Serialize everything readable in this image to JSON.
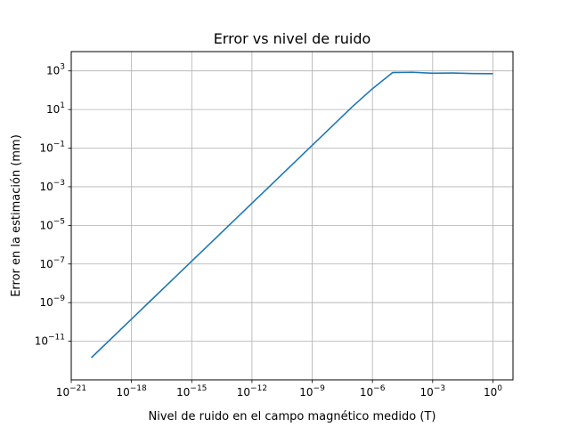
{
  "chart_data": {
    "type": "line",
    "title": "Error vs nivel de ruido",
    "xlabel": "Nivel de ruido en el campo magnético medido (T)",
    "ylabel": "Error en la estimación (mm)",
    "xscale": "log",
    "yscale": "log",
    "xlim": [
      1e-21,
      10
    ],
    "ylim": [
      1e-13,
      10000.0
    ],
    "grid": true,
    "x_ticks": [
      {
        "base": "10",
        "exp": "−21",
        "value": 1e-21
      },
      {
        "base": "10",
        "exp": "−18",
        "value": 1e-18
      },
      {
        "base": "10",
        "exp": "−15",
        "value": 1e-15
      },
      {
        "base": "10",
        "exp": "−12",
        "value": 1e-12
      },
      {
        "base": "10",
        "exp": "−9",
        "value": 1e-09
      },
      {
        "base": "10",
        "exp": "−6",
        "value": 1e-06
      },
      {
        "base": "10",
        "exp": "−3",
        "value": 0.001
      },
      {
        "base": "10",
        "exp": "0",
        "value": 1
      }
    ],
    "y_ticks": [
      {
        "base": "10",
        "exp": "−11",
        "value": 1e-11
      },
      {
        "base": "10",
        "exp": "−9",
        "value": 1e-09
      },
      {
        "base": "10",
        "exp": "−7",
        "value": 1e-07
      },
      {
        "base": "10",
        "exp": "−5",
        "value": 1e-05
      },
      {
        "base": "10",
        "exp": "−3",
        "value": 0.001
      },
      {
        "base": "10",
        "exp": "−1",
        "value": 0.1
      },
      {
        "base": "10",
        "exp": "1",
        "value": 10
      },
      {
        "base": "10",
        "exp": "3",
        "value": 1000
      }
    ],
    "series": [
      {
        "color": "#1f77b4",
        "x": [
          1e-20,
          1e-19,
          1e-18,
          1e-17,
          1e-16,
          1e-15,
          1e-14,
          1e-13,
          1e-12,
          1e-11,
          1e-10,
          1e-09,
          1e-08,
          1e-07,
          1e-06,
          1e-05,
          0.0001,
          0.001,
          0.01,
          0.1,
          1
        ],
        "y": [
          1.4e-12,
          1.4e-11,
          1.4e-10,
          1.4e-09,
          1.4e-08,
          1.4e-07,
          1.4e-06,
          1.4e-05,
          0.00014,
          0.0014,
          0.014,
          0.14,
          1.4,
          14,
          120,
          820,
          850,
          760,
          780,
          730,
          720
        ]
      }
    ]
  }
}
